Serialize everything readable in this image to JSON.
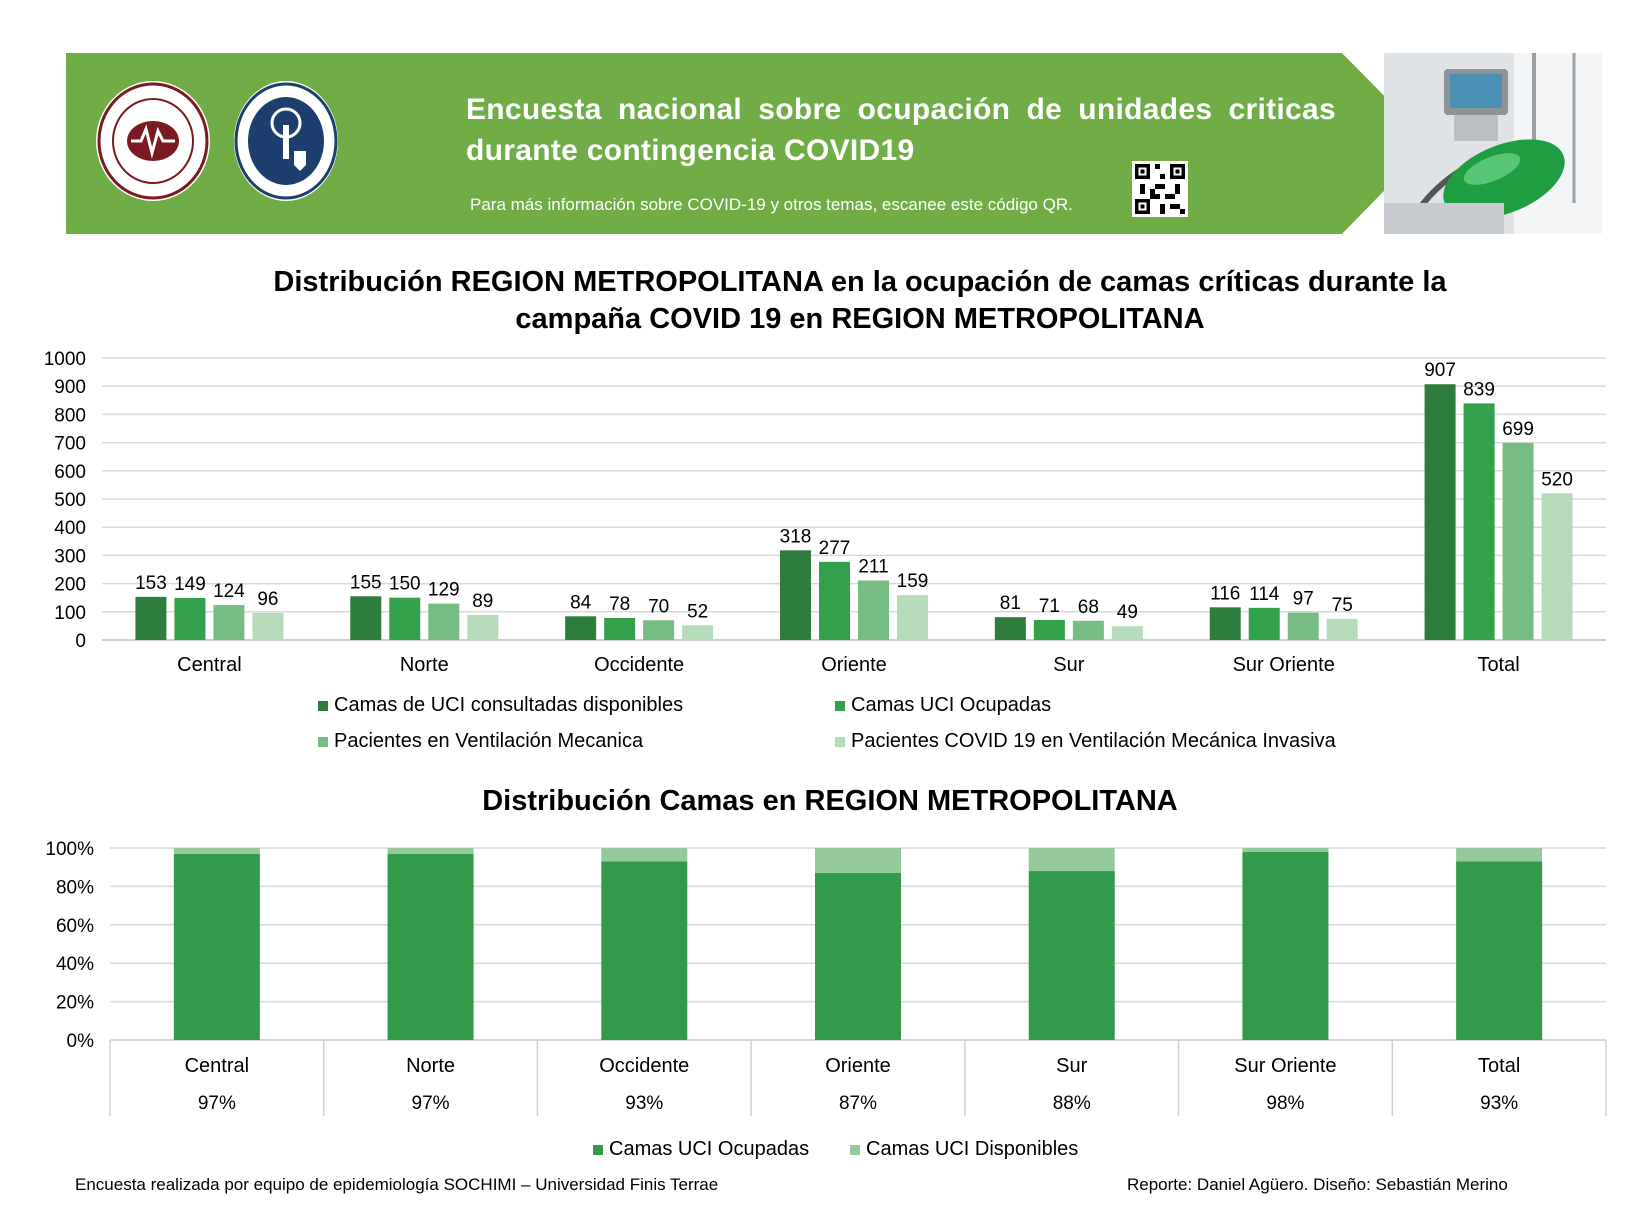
{
  "banner": {
    "title": "Encuesta nacional sobre ocupación de unidades criticas durante contingencia COVID19",
    "subtitle": "Para más información sobre COVID-19 y otros temas, escanee este código QR.",
    "logos": [
      "sochimi-logo",
      "universidad-finis-terrae-logo"
    ],
    "colors": {
      "banner_green": "#70AD47",
      "dark_border": "#c8c8c8"
    }
  },
  "chart_data": [
    {
      "type": "bar",
      "title": "Distribución REGION METROPOLITANA en la ocupación de camas críticas durante la campaña COVID 19 en REGION METROPOLITANA",
      "categories": [
        "Central",
        "Norte",
        "Occidente",
        "Oriente",
        "Sur",
        "Sur Oriente",
        "Total"
      ],
      "series": [
        {
          "name": "Camas de UCI consultadas disponibles",
          "color": "#2E7D3C",
          "values": [
            153,
            155,
            84,
            318,
            81,
            116,
            907
          ]
        },
        {
          "name": "Camas UCI Ocupadas",
          "color": "#33A04B",
          "values": [
            149,
            150,
            78,
            277,
            71,
            114,
            839
          ]
        },
        {
          "name": "Pacientes en Ventilación Mecanica",
          "color": "#77BD83",
          "values": [
            124,
            129,
            70,
            211,
            68,
            97,
            699
          ]
        },
        {
          "name": "Pacientes COVID 19 en Ventilación Mecánica Invasiva",
          "color": "#B5DBBA",
          "values": [
            96,
            89,
            52,
            159,
            49,
            75,
            520
          ]
        }
      ],
      "ylim": [
        0,
        1000
      ],
      "yticks": [
        "0",
        "100",
        "200",
        "300",
        "400",
        "500",
        "600",
        "700",
        "800",
        "900",
        "1000"
      ],
      "grid": true,
      "legend_position": "bottom"
    },
    {
      "type": "bar",
      "stacked": "percent",
      "title": "Distribución Camas en REGION METROPOLITANA",
      "categories": [
        "Central",
        "Norte",
        "Occidente",
        "Oriente",
        "Sur",
        "Sur Oriente",
        "Total"
      ],
      "table_labels": [
        "97%",
        "97%",
        "93%",
        "87%",
        "88%",
        "98%",
        "93%"
      ],
      "series": [
        {
          "name": "Camas UCI Ocupadas",
          "color": "#33994B",
          "values": [
            97,
            97,
            93,
            87,
            88,
            98,
            93
          ]
        },
        {
          "name": "Camas UCI Disponibles",
          "color": "#93C99B",
          "values": [
            3,
            3,
            7,
            13,
            12,
            2,
            7
          ]
        }
      ],
      "ylim": [
        0,
        100
      ],
      "yticks": [
        "0%",
        "20%",
        "40%",
        "60%",
        "80%",
        "100%"
      ],
      "grid": true,
      "legend_position": "bottom"
    }
  ],
  "footer": {
    "left": "Encuesta realizada por equipo de epidemiología SOCHIMI – Universidad Finis Terrae",
    "right": "Reporte: Daniel Agüero. Diseño: Sebastián Merino"
  }
}
